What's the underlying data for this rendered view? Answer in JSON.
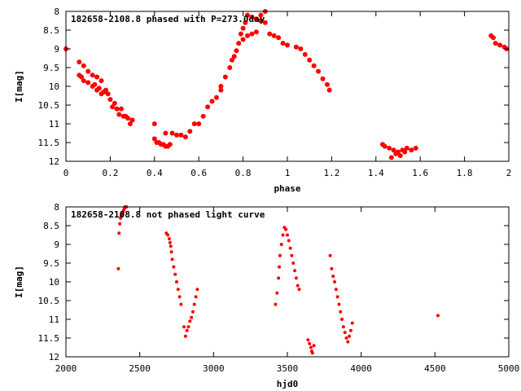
{
  "chart_data": [
    {
      "type": "scatter",
      "title": "182658-2108.8 phased with P=273.0day",
      "xlabel": "phase",
      "ylabel": "I[mag]",
      "xlim": [
        0,
        2
      ],
      "ylim": [
        8,
        12
      ],
      "y_inverted": true,
      "xticks": [
        0,
        0.2,
        0.4,
        0.6,
        0.8,
        1,
        1.2,
        1.4,
        1.6,
        1.8,
        2
      ],
      "yticks": [
        8,
        8.5,
        9,
        9.5,
        10,
        10.5,
        11,
        11.5,
        12
      ],
      "grid": false,
      "color": "#ff0000",
      "series": [
        {
          "x": [
            0.0,
            0.06,
            0.07,
            0.08,
            0.06,
            0.08,
            0.1,
            0.12,
            0.14,
            0.16,
            0.18,
            0.1,
            0.12,
            0.14,
            0.16,
            0.18,
            0.2,
            0.22,
            0.13,
            0.15,
            0.17,
            0.19,
            0.21,
            0.23,
            0.24,
            0.26,
            0.28,
            0.3,
            0.25,
            0.27,
            0.29,
            0.4,
            0.4,
            0.41,
            0.42,
            0.43,
            0.44,
            0.45,
            0.46,
            0.47,
            0.45,
            0.48,
            0.5,
            0.52,
            0.54,
            0.56,
            0.58,
            0.6,
            0.62,
            0.64,
            0.66,
            0.68,
            0.7,
            0.7,
            0.72,
            0.74,
            0.75,
            0.76,
            0.77,
            0.78,
            0.79,
            0.8,
            0.81,
            0.8,
            0.82,
            0.84,
            0.86,
            0.88,
            0.9,
            0.82,
            0.84,
            0.86,
            0.88,
            0.9,
            0.92,
            0.94,
            0.96,
            0.98,
            1.0,
            1.04,
            1.06,
            1.08,
            1.1,
            1.12,
            1.14,
            1.16,
            1.18,
            1.19,
            1.43,
            1.44,
            1.46,
            1.48,
            1.5,
            1.52,
            1.54,
            1.56,
            1.58,
            1.49,
            1.51,
            1.53,
            1.47,
            1.92,
            1.93,
            1.94,
            1.96,
            1.98,
            1.99
          ],
          "y": [
            9.0,
            9.7,
            9.75,
            9.85,
            9.35,
            9.45,
            9.6,
            9.7,
            9.75,
            9.85,
            10.1,
            9.9,
            10.0,
            10.1,
            10.2,
            10.15,
            10.35,
            10.45,
            9.95,
            10.05,
            10.15,
            10.2,
            10.55,
            10.6,
            10.75,
            10.8,
            10.85,
            10.9,
            10.6,
            10.8,
            11.0,
            11.0,
            11.4,
            11.5,
            11.5,
            11.55,
            11.55,
            11.6,
            11.6,
            11.55,
            11.25,
            11.25,
            11.3,
            11.3,
            11.35,
            11.2,
            11.0,
            11.0,
            10.8,
            10.55,
            10.4,
            10.3,
            10.0,
            10.1,
            9.75,
            9.5,
            9.3,
            9.2,
            9.05,
            8.85,
            8.6,
            8.45,
            8.3,
            8.75,
            8.65,
            8.6,
            8.55,
            8.1,
            8.0,
            8.1,
            8.15,
            8.2,
            8.25,
            8.3,
            8.6,
            8.65,
            8.7,
            8.85,
            8.9,
            8.95,
            9.0,
            9.15,
            9.3,
            9.45,
            9.6,
            9.8,
            9.95,
            10.1,
            11.55,
            11.6,
            11.65,
            11.7,
            11.75,
            11.7,
            11.65,
            11.7,
            11.65,
            11.8,
            11.85,
            11.75,
            11.9,
            8.65,
            8.7,
            8.85,
            8.9,
            8.95,
            9.0
          ]
        }
      ]
    },
    {
      "type": "scatter",
      "title": "182658-2108.8 not phased light curve",
      "xlabel": "hjd0",
      "ylabel": "I[mag]",
      "xlim": [
        2000,
        5000
      ],
      "ylim": [
        8,
        12
      ],
      "y_inverted": true,
      "xticks": [
        2000,
        2500,
        3000,
        3500,
        4000,
        4500,
        5000
      ],
      "yticks": [
        8,
        8.5,
        9,
        9.5,
        10,
        10.5,
        11,
        11.5,
        12
      ],
      "grid": false,
      "color": "#ff0000",
      "series": [
        {
          "x": [
            2355,
            2360,
            2365,
            2370,
            2375,
            2380,
            2385,
            2390,
            2395,
            2400,
            2405,
            2410,
            2680,
            2690,
            2700,
            2705,
            2710,
            2715,
            2720,
            2730,
            2740,
            2750,
            2760,
            2770,
            2780,
            2800,
            2810,
            2820,
            2830,
            2840,
            2850,
            2860,
            2870,
            2880,
            2890,
            3420,
            3430,
            3440,
            3445,
            3450,
            3460,
            3470,
            3480,
            3490,
            3500,
            3510,
            3520,
            3530,
            3540,
            3550,
            3560,
            3570,
            3580,
            3640,
            3650,
            3660,
            3665,
            3670,
            3680,
            3790,
            3800,
            3810,
            3820,
            3830,
            3840,
            3850,
            3860,
            3870,
            3880,
            3890,
            3900,
            3910,
            3920,
            3930,
            3940,
            4520
          ],
          "y": [
            9.65,
            8.7,
            8.45,
            8.3,
            8.25,
            8.2,
            8.15,
            8.1,
            8.05,
            8.0,
            8.0,
            8.0,
            8.7,
            8.75,
            8.85,
            8.95,
            9.05,
            9.2,
            9.4,
            9.6,
            9.8,
            10.0,
            10.2,
            10.4,
            10.6,
            11.2,
            11.45,
            11.3,
            11.2,
            11.05,
            10.95,
            10.8,
            10.6,
            10.4,
            10.2,
            10.6,
            10.3,
            9.9,
            9.6,
            9.3,
            9.0,
            8.75,
            8.55,
            8.6,
            8.75,
            8.9,
            9.1,
            9.3,
            9.5,
            9.7,
            9.9,
            10.1,
            10.2,
            11.55,
            11.65,
            11.75,
            11.85,
            11.9,
            11.7,
            9.3,
            9.65,
            9.85,
            10.0,
            10.2,
            10.4,
            10.6,
            10.8,
            11.0,
            11.2,
            11.35,
            11.5,
            11.6,
            11.45,
            11.3,
            11.1,
            10.9
          ]
        }
      ]
    }
  ]
}
